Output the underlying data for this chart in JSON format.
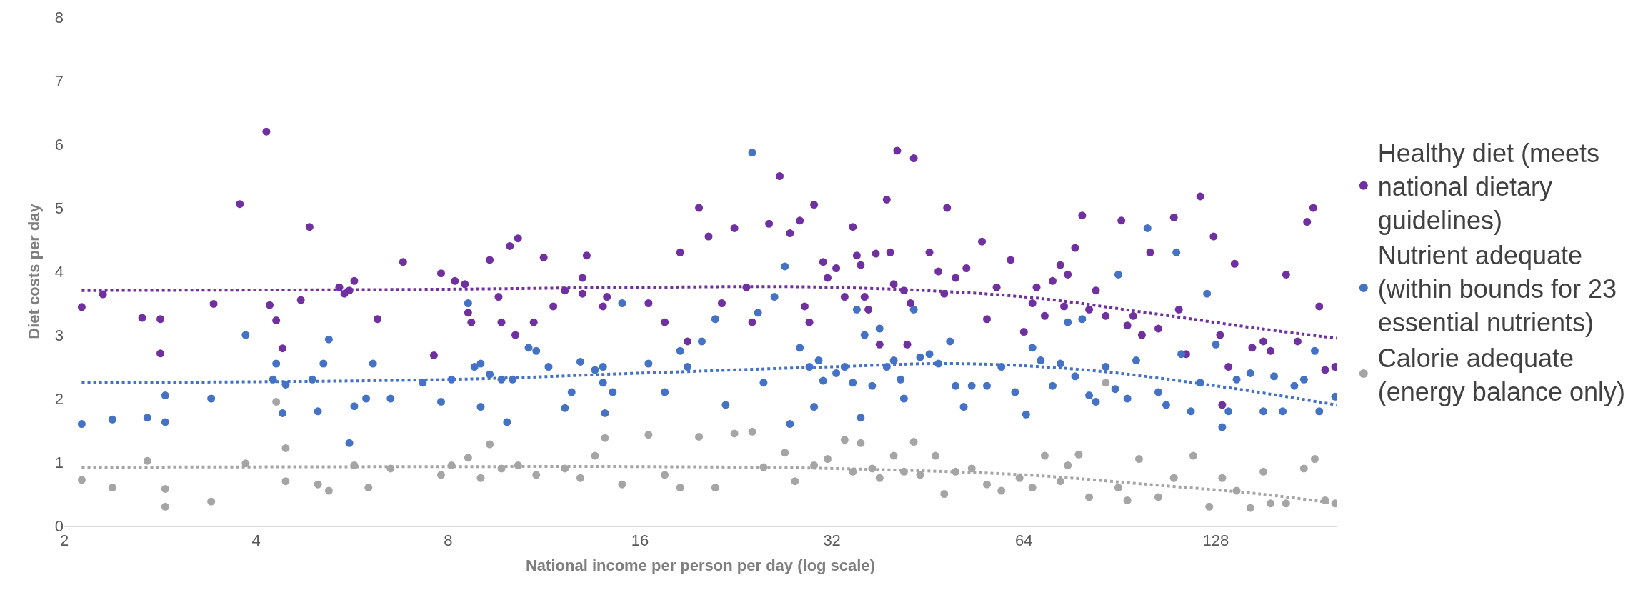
{
  "chart_data": {
    "type": "scatter",
    "xlabel": "National income per person per day (log scale)",
    "ylabel": "Diet costs per day",
    "log": "x",
    "xlim": [
      2,
      198
    ],
    "xticks": [
      2,
      4,
      8,
      16,
      32,
      64,
      128
    ],
    "ylim": [
      0,
      8
    ],
    "yticks": [
      0,
      1,
      2,
      3,
      4,
      5,
      6,
      7,
      8
    ],
    "legend": "right",
    "marker": "circle",
    "series": [
      {
        "name": "Healthy diet (meets national dietary guidelines)",
        "color": "#7030a0",
        "x": [
          2.13,
          2.3,
          2.65,
          2.83,
          2.83,
          3.43,
          3.77,
          4.15,
          4.2,
          4.3,
          4.4,
          4.85,
          4.7,
          5.4,
          5.5,
          5.7,
          5.6,
          6.2,
          6.8,
          7.6,
          7.8,
          8.2,
          8.5,
          8.6,
          8.7,
          9.3,
          9.6,
          9.7,
          10.0,
          10.3,
          10.2,
          10.9,
          11.3,
          11.7,
          12.2,
          13.0,
          13.2,
          13.0,
          14.2,
          14.0,
          16.5,
          17.5,
          18.5,
          19.0,
          19.8,
          20.5,
          21.5,
          22.5,
          23.5,
          24.0,
          25.5,
          26.5,
          27.5,
          28.5,
          29.0,
          29.5,
          30.0,
          31.0,
          31.5,
          32.5,
          33.5,
          34.5,
          35.0,
          35.5,
          36.0,
          36.5,
          37.5,
          38.0,
          39.0,
          39.5,
          40.0,
          40.5,
          41.5,
          42.0,
          42.5,
          43.0,
          45.5,
          47.0,
          48.0,
          48.5,
          50.0,
          52.0,
          55.0,
          56.0,
          58.0,
          61.0,
          64.0,
          66.0,
          67.0,
          69.0,
          71.0,
          73.0,
          74.0,
          75.0,
          77.0,
          79.0,
          81.0,
          83.0,
          86.0,
          91.0,
          93.0,
          95.0,
          98.0,
          101.0,
          104.0,
          110.0,
          112.0,
          115.0,
          121.0,
          127.0,
          130.0,
          131.0,
          134.0,
          137.0,
          146.0,
          152.0,
          156.0,
          165.0,
          172.0,
          178.0,
          182.0,
          186.0,
          190.0,
          197.0
        ],
        "values": [
          3.44,
          3.64,
          3.27,
          3.25,
          2.71,
          3.49,
          5.06,
          6.2,
          3.47,
          3.23,
          2.79,
          4.7,
          3.55,
          3.75,
          3.65,
          3.85,
          3.7,
          3.25,
          4.15,
          2.68,
          3.97,
          3.85,
          3.8,
          3.35,
          3.2,
          4.18,
          3.6,
          3.2,
          4.4,
          4.52,
          3.0,
          3.2,
          4.22,
          3.45,
          3.7,
          3.9,
          4.25,
          3.65,
          3.6,
          3.45,
          3.5,
          3.2,
          4.3,
          2.9,
          5.0,
          4.55,
          3.5,
          4.68,
          3.75,
          3.2,
          4.75,
          5.5,
          4.6,
          4.8,
          3.45,
          3.2,
          5.05,
          4.15,
          3.9,
          4.05,
          3.6,
          4.7,
          4.25,
          4.1,
          3.6,
          3.4,
          4.28,
          2.85,
          5.13,
          4.3,
          3.8,
          5.9,
          3.7,
          2.85,
          3.5,
          5.78,
          4.3,
          4.0,
          3.65,
          5.0,
          3.9,
          4.05,
          4.47,
          3.25,
          3.75,
          4.18,
          3.05,
          3.5,
          3.75,
          3.3,
          3.85,
          4.1,
          3.45,
          3.95,
          4.37,
          4.88,
          3.4,
          3.7,
          3.3,
          4.8,
          3.15,
          3.3,
          3.0,
          4.3,
          3.1,
          4.85,
          3.4,
          2.7,
          5.18,
          4.55,
          3.0,
          1.9,
          2.5,
          4.12,
          2.8,
          2.9,
          2.75,
          3.95,
          2.9,
          4.78,
          5.0,
          3.45,
          2.45,
          2.5
        ]
      },
      {
        "name": "Nutrient adequate (within bounds for 23 essential nutrients)",
        "color": "#4472c4",
        "x": [
          2.13,
          2.38,
          2.7,
          2.88,
          2.88,
          3.4,
          3.85,
          4.25,
          4.3,
          4.4,
          4.45,
          4.9,
          5.0,
          5.1,
          5.2,
          5.6,
          5.7,
          5.95,
          6.1,
          6.5,
          7.3,
          7.8,
          8.1,
          8.6,
          8.8,
          9.0,
          9.0,
          9.3,
          9.7,
          9.9,
          10.1,
          10.7,
          11.0,
          11.5,
          12.2,
          12.5,
          12.9,
          13.6,
          14.0,
          14.0,
          14.1,
          14.5,
          15.0,
          16.5,
          17.5,
          18.5,
          19.0,
          20.0,
          21.0,
          21.8,
          24.0,
          24.5,
          25.0,
          26.0,
          27.0,
          27.5,
          28.5,
          29.5,
          30.0,
          30.5,
          31.0,
          32.5,
          33.5,
          34.5,
          35.0,
          35.5,
          36.0,
          37.0,
          38.0,
          39.0,
          40.0,
          41.0,
          41.5,
          43.0,
          44.0,
          45.5,
          47.0,
          49.0,
          50.0,
          51.5,
          53.0,
          56.0,
          59.0,
          62.0,
          64.5,
          66.0,
          68.0,
          71.0,
          73.0,
          75.0,
          77.0,
          79.0,
          81.0,
          83.0,
          86.0,
          89.0,
          90.0,
          93.0,
          96.0,
          100.0,
          104.0,
          107.0,
          111.0,
          113.0,
          117.0,
          121.0,
          124.0,
          128.0,
          131.0,
          134.0,
          138.0,
          145.0,
          152.0,
          158.0,
          163.0,
          170.0,
          176.0,
          183.0,
          186.0,
          197.0
        ],
        "values": [
          1.6,
          1.67,
          1.7,
          2.05,
          1.63,
          2.0,
          3.0,
          2.3,
          2.55,
          1.77,
          2.22,
          2.3,
          1.8,
          2.55,
          2.93,
          1.3,
          1.88,
          2.0,
          2.55,
          2.0,
          2.25,
          1.95,
          2.3,
          3.5,
          2.5,
          2.55,
          1.87,
          2.38,
          2.3,
          1.63,
          2.3,
          2.8,
          2.75,
          2.5,
          1.85,
          2.1,
          2.58,
          2.45,
          2.5,
          2.25,
          1.77,
          2.1,
          3.5,
          2.55,
          2.1,
          2.75,
          2.5,
          2.9,
          3.25,
          1.9,
          5.87,
          3.35,
          2.25,
          3.6,
          4.08,
          1.6,
          2.8,
          2.5,
          1.87,
          2.6,
          2.28,
          2.4,
          2.5,
          2.25,
          3.4,
          1.7,
          3.0,
          2.2,
          3.1,
          2.5,
          2.6,
          2.3,
          2.0,
          3.4,
          2.65,
          2.7,
          2.55,
          2.9,
          2.2,
          1.87,
          2.2,
          2.2,
          2.5,
          2.1,
          1.75,
          2.8,
          2.6,
          2.2,
          2.55,
          3.2,
          2.35,
          3.25,
          2.05,
          1.95,
          2.5,
          2.15,
          3.95,
          2.0,
          2.6,
          4.68,
          2.1,
          1.9,
          4.3,
          2.7,
          1.8,
          2.25,
          3.65,
          2.85,
          1.55,
          1.8,
          2.3,
          2.4,
          1.8,
          2.35,
          1.8,
          2.2,
          2.3,
          2.75,
          1.8,
          2.03
        ]
      },
      {
        "name": "Calorie adequate (energy balance only)",
        "color": "#a5a5a5",
        "x": [
          2.13,
          2.38,
          2.7,
          2.88,
          2.88,
          3.4,
          3.85,
          4.3,
          4.45,
          4.45,
          5.0,
          5.2,
          5.7,
          6.0,
          6.5,
          7.8,
          8.1,
          8.6,
          9.0,
          9.3,
          9.7,
          10.3,
          11.0,
          12.2,
          12.9,
          13.6,
          14.1,
          15.0,
          16.5,
          17.5,
          18.5,
          19.8,
          21.0,
          22.5,
          24.0,
          25.0,
          27.0,
          28.0,
          30.0,
          31.5,
          33.5,
          34.5,
          35.5,
          37.0,
          38.0,
          40.0,
          41.5,
          43.0,
          44.0,
          46.5,
          48.0,
          50.0,
          53.0,
          56.0,
          59.0,
          63.0,
          66.0,
          69.0,
          73.0,
          75.0,
          78.0,
          81.0,
          86.0,
          90.0,
          93.0,
          97.0,
          104.0,
          110.0,
          118.0,
          125.0,
          131.0,
          138.0,
          145.0,
          152.0,
          156.0,
          165.0,
          176.0,
          183.0,
          190.0,
          197.0
        ],
        "values": [
          0.72,
          0.6,
          1.02,
          0.58,
          0.3,
          0.38,
          0.98,
          1.95,
          1.22,
          0.7,
          0.65,
          0.55,
          0.95,
          0.6,
          0.9,
          0.8,
          0.95,
          1.07,
          0.75,
          1.28,
          0.9,
          0.95,
          0.8,
          0.9,
          0.75,
          1.1,
          1.38,
          0.65,
          1.43,
          0.8,
          0.6,
          1.4,
          0.6,
          1.45,
          1.48,
          0.92,
          1.15,
          0.7,
          0.95,
          1.05,
          1.35,
          0.85,
          1.3,
          0.9,
          0.75,
          1.1,
          0.85,
          1.32,
          0.8,
          1.1,
          0.5,
          0.85,
          0.9,
          0.65,
          0.55,
          0.75,
          0.6,
          1.1,
          0.7,
          0.95,
          1.12,
          0.45,
          2.25,
          0.6,
          0.4,
          1.05,
          0.45,
          0.75,
          1.1,
          0.3,
          0.75,
          0.55,
          0.28,
          0.85,
          0.35,
          0.35,
          0.9,
          1.05,
          0.4,
          0.35
        ]
      },
      {
        "type": "line",
        "line_style": "dotted",
        "marker": "none",
        "color": "#7030a0",
        "x": [
          2.13,
          8,
          16,
          32,
          64,
          100,
          150,
          198
        ],
        "values": [
          3.7,
          3.72,
          3.75,
          3.75,
          3.6,
          3.35,
          3.1,
          2.95
        ]
      },
      {
        "type": "line",
        "line_style": "dotted",
        "marker": "none",
        "color": "#4472c4",
        "x": [
          2.13,
          8,
          16,
          32,
          50,
          80,
          128,
          198
        ],
        "values": [
          2.25,
          2.3,
          2.4,
          2.5,
          2.55,
          2.45,
          2.2,
          1.9
        ]
      },
      {
        "type": "line",
        "line_style": "dotted",
        "marker": "none",
        "color": "#a5a5a5",
        "x": [
          2.13,
          8,
          16,
          32,
          64,
          100,
          150,
          198
        ],
        "values": [
          0.92,
          0.93,
          0.93,
          0.9,
          0.8,
          0.65,
          0.5,
          0.35
        ]
      }
    ]
  }
}
